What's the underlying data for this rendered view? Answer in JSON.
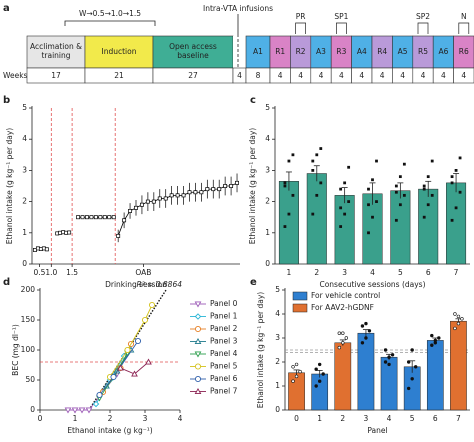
{
  "timeline": {
    "panel": "a",
    "pre_label": "W→0.5→1.0→1.5",
    "infusion_label": "Intra-VTA infusions",
    "weeks_label": "Weeks:",
    "markers": [
      "PR",
      "SP1",
      "SP2",
      "N"
    ],
    "stages": [
      {
        "label": "Acclimation & training",
        "color": "#e6e6e6",
        "weeks": 17
      },
      {
        "label": "Induction",
        "color": "#f2ea4b",
        "weeks": 21
      },
      {
        "label": "Open access baseline",
        "color": "#3fae95",
        "weeks": 27
      },
      {
        "weeks": 4
      },
      {
        "label": "A1",
        "color": "#4fb0e6",
        "weeks": 8
      },
      {
        "label": "R1",
        "color": "#d983c6",
        "weeks": 4
      },
      {
        "label": "R2",
        "color": "#b99ad9",
        "weeks": 4
      },
      {
        "label": "A3",
        "color": "#4fb0e6",
        "weeks": 4
      },
      {
        "label": "R3",
        "color": "#d983c6",
        "weeks": 4
      },
      {
        "label": "A4",
        "color": "#4fb0e6",
        "weeks": 4
      },
      {
        "label": "R4",
        "color": "#b99ad9",
        "weeks": 4
      },
      {
        "label": "A5",
        "color": "#4fb0e6",
        "weeks": 4
      },
      {
        "label": "R5",
        "color": "#b99ad9",
        "weeks": 4
      },
      {
        "label": "A6",
        "color": "#4fb0e6",
        "weeks": 4
      },
      {
        "label": "R6",
        "color": "#d983c6",
        "weeks": 4
      }
    ]
  },
  "chart_data": [
    {
      "type": "line",
      "panel": "b",
      "xlabel": "Drinking session",
      "ylabel": "Ethanol intake (g kg⁻¹ per day)",
      "x": [
        2,
        4,
        6,
        8,
        10,
        13,
        17,
        19,
        21,
        23,
        25,
        27,
        31,
        34,
        37,
        40,
        43,
        46,
        49,
        52,
        55,
        56,
        58,
        62,
        66,
        70,
        74,
        78,
        82,
        86,
        90,
        94,
        98,
        102,
        106,
        110,
        114,
        118,
        122,
        126,
        130,
        134,
        138
      ],
      "series": [
        {
          "color": "#000000",
          "values": [
            0.45,
            0.5,
            0.48,
            0.5,
            0.47,
            null,
            0.98,
            1.0,
            1.02,
            1.0,
            1.01,
            null,
            1.5,
            1.5,
            1.5,
            1.5,
            1.5,
            1.5,
            1.5,
            1.5,
            1.5,
            null,
            0.9,
            1.4,
            1.7,
            1.8,
            1.9,
            2.0,
            2.0,
            2.1,
            2.1,
            2.2,
            2.2,
            2.2,
            2.3,
            2.3,
            2.3,
            2.4,
            2.4,
            2.4,
            2.5,
            2.5,
            2.6
          ],
          "errors": [
            0.03,
            0.03,
            0.03,
            0.03,
            0.03,
            null,
            0.04,
            0.04,
            0.04,
            0.04,
            0.04,
            null,
            0.05,
            0.05,
            0.05,
            0.05,
            0.05,
            0.05,
            0.05,
            0.05,
            0.05,
            null,
            0.2,
            0.25,
            0.25,
            0.25,
            0.3,
            0.3,
            0.3,
            0.3,
            0.3,
            0.3,
            0.3,
            0.3,
            0.3,
            0.3,
            0.3,
            0.3,
            0.3,
            0.3,
            0.3,
            0.3,
            0.3
          ]
        }
      ],
      "xlim": [
        0,
        140
      ],
      "xticks": [
        {
          "value": 5,
          "label": "0.5"
        },
        {
          "value": 13,
          "label": "1.0"
        },
        {
          "value": 27,
          "label": "1.5"
        },
        {
          "value": 75,
          "label": "OAB"
        }
      ],
      "ylim": [
        0,
        5
      ],
      "yticks": [
        0,
        1,
        2,
        3,
        4,
        5
      ],
      "phase_lines": [
        13,
        27,
        56
      ],
      "phase_line_color": "#e05050"
    },
    {
      "type": "bar",
      "panel": "c",
      "xlabel": "Consecutive sessions (days)",
      "ylabel": "Ethanol intake (g kg⁻¹ per day)",
      "color": "#3aa08c",
      "categories": [
        "1",
        "2",
        "3",
        "4",
        "5",
        "6",
        "7"
      ],
      "values": [
        2.65,
        2.9,
        2.2,
        2.25,
        2.35,
        2.4,
        2.6
      ],
      "errors": [
        0.3,
        0.25,
        0.25,
        0.35,
        0.25,
        0.25,
        0.3
      ],
      "points": [
        [
          1.2,
          1.6,
          2.2,
          2.5,
          3.3,
          3.5,
          2.6
        ],
        [
          1.6,
          2.2,
          2.6,
          3.0,
          3.5,
          3.7,
          3.3
        ],
        [
          1.2,
          1.6,
          2.0,
          2.4,
          2.6,
          3.1,
          1.8
        ],
        [
          1.0,
          1.5,
          2.0,
          2.4,
          2.7,
          3.3,
          1.9
        ],
        [
          1.4,
          1.9,
          2.2,
          2.5,
          2.8,
          3.2,
          2.3
        ],
        [
          1.5,
          1.9,
          2.2,
          2.5,
          2.8,
          3.3,
          2.4
        ],
        [
          1.4,
          1.8,
          2.3,
          2.8,
          3.0,
          3.4,
          2.6
        ]
      ],
      "ylim": [
        0,
        5
      ],
      "yticks": [
        0,
        1,
        2,
        3,
        4,
        5
      ]
    },
    {
      "type": "scatter",
      "panel": "d",
      "xlabel": "Ethanol intake (g kg⁻¹)",
      "ylabel": "BEC (mg dl⁻¹)",
      "annotation": "R² = 0.8864",
      "xlim": [
        0,
        4
      ],
      "xticks": [
        0,
        1,
        2,
        3,
        4
      ],
      "ylim": [
        0,
        200
      ],
      "yticks": [
        0,
        50,
        100,
        150,
        200
      ],
      "threshold": 80,
      "threshold_color": "#e05050",
      "fit_line": {
        "x": [
          1.4,
          3.6
        ],
        "y": [
          0,
          200
        ]
      },
      "series": [
        {
          "name": "Panel 0",
          "color": "#9b59b6",
          "marker": "triangle-down",
          "x": [
            0.8,
            1.0,
            1.2,
            1.4,
            2.2
          ],
          "y": [
            0,
            0,
            0,
            0,
            60
          ]
        },
        {
          "name": "Panel 1",
          "color": "#29b6d6",
          "marker": "diamond",
          "x": [
            1.6,
            2.0,
            2.4
          ],
          "y": [
            10,
            50,
            90
          ]
        },
        {
          "name": "Panel 2",
          "color": "#e67e22",
          "marker": "circle",
          "x": [
            1.8,
            2.3,
            2.6
          ],
          "y": [
            30,
            70,
            110
          ]
        },
        {
          "name": "Panel 3",
          "color": "#1f7a8c",
          "marker": "triangle-up",
          "x": [
            1.9,
            2.2,
            2.6
          ],
          "y": [
            40,
            65,
            100
          ]
        },
        {
          "name": "Panel 4",
          "color": "#2a9d4a",
          "marker": "triangle-down",
          "x": [
            1.7,
            2.1,
            2.5
          ],
          "y": [
            20,
            55,
            95
          ]
        },
        {
          "name": "Panel 5",
          "color": "#d4c21a",
          "marker": "circle",
          "x": [
            2.0,
            2.5,
            3.0,
            3.2
          ],
          "y": [
            55,
            100,
            150,
            175
          ]
        },
        {
          "name": "Panel 6",
          "color": "#2e5eaa",
          "marker": "circle",
          "x": [
            1.7,
            2.1,
            2.8
          ],
          "y": [
            25,
            55,
            115
          ]
        },
        {
          "name": "Panel 7",
          "color": "#8b2252",
          "marker": "triangle-up",
          "x": [
            2.3,
            2.7,
            3.1
          ],
          "y": [
            70,
            60,
            80
          ]
        }
      ]
    },
    {
      "type": "bar",
      "panel": "e",
      "xlabel": "Panel",
      "ylabel": "Ethanol intake (g kg⁻¹ per day)",
      "categories": [
        "0",
        "1",
        "2",
        "3",
        "4",
        "5",
        "6",
        "7"
      ],
      "ylim": [
        0,
        5
      ],
      "yticks": [
        0,
        1,
        2,
        3,
        4,
        5
      ],
      "reference_lines": [
        2.4,
        2.5
      ],
      "series": [
        {
          "name": "For vehicle control",
          "color": "#2e7fd0",
          "values": [
            null,
            1.5,
            null,
            3.2,
            2.2,
            1.8,
            2.9,
            null
          ],
          "errors": [
            null,
            0.15,
            null,
            0.15,
            0.12,
            0.25,
            0.1,
            null
          ],
          "points": [
            null,
            [
              1.0,
              1.2,
              1.5,
              1.7,
              1.9
            ],
            null,
            [
              2.8,
              3.0,
              3.3,
              3.5,
              3.6
            ],
            [
              2.0,
              2.2,
              2.3,
              2.5,
              1.9
            ],
            [
              0.9,
              1.3,
              1.8,
              2.0,
              2.5
            ],
            [
              2.7,
              2.8,
              3.0,
              3.1,
              2.9
            ],
            null
          ]
        },
        {
          "name": "For AAV2-hGDNF",
          "color": "#e07030",
          "values": [
            1.55,
            null,
            2.8,
            null,
            null,
            null,
            null,
            3.7
          ],
          "errors": [
            0.12,
            null,
            0.12,
            null,
            null,
            null,
            null,
            0.1
          ],
          "points": [
            [
              1.2,
              1.4,
              1.6,
              1.8,
              1.9
            ],
            null,
            [
              2.6,
              2.8,
              3.0,
              3.2,
              3.2
            ],
            null,
            null,
            null,
            null,
            [
              3.4,
              3.6,
              3.8,
              4.0,
              3.9
            ]
          ]
        }
      ]
    }
  ]
}
